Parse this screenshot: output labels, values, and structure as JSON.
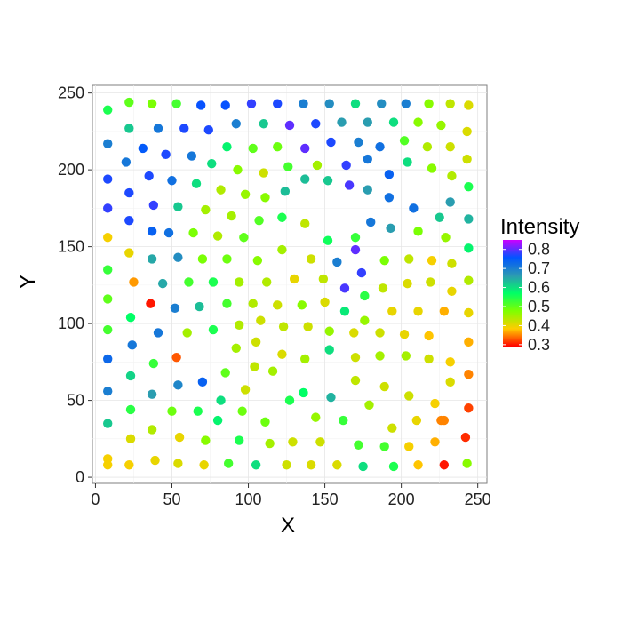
{
  "chart_data": {
    "type": "scatter",
    "title": "",
    "xlabel": "X",
    "ylabel": "Y",
    "xlim": [
      -2,
      256
    ],
    "ylim": [
      -4,
      255
    ],
    "x_ticks": [
      0,
      50,
      100,
      150,
      200,
      250
    ],
    "y_ticks": [
      0,
      50,
      100,
      150,
      200,
      250
    ],
    "grid": true,
    "legend": {
      "title": "Intensity",
      "placement": "right",
      "range": [
        0.29,
        0.85
      ],
      "breaks": [
        0.3,
        0.4,
        0.5,
        0.6,
        0.7,
        0.8
      ],
      "labels": [
        "0.3",
        "0.4",
        "0.5",
        "0.6",
        "0.7",
        "0.8"
      ]
    },
    "color_scale": [
      "#ff0000",
      "#ffcc00",
      "#7fff00",
      "#00ff66",
      "#2c99b3",
      "#0055ff",
      "#cc00ff"
    ],
    "points": [
      {
        "x": 8,
        "y": 239,
        "v": 0.55
      },
      {
        "x": 22,
        "y": 244,
        "v": 0.5
      },
      {
        "x": 37,
        "y": 243,
        "v": 0.48
      },
      {
        "x": 53,
        "y": 243,
        "v": 0.52
      },
      {
        "x": 69,
        "y": 242,
        "v": 0.76
      },
      {
        "x": 85,
        "y": 242,
        "v": 0.76
      },
      {
        "x": 102,
        "y": 243,
        "v": 0.78
      },
      {
        "x": 119,
        "y": 243,
        "v": 0.77
      },
      {
        "x": 136,
        "y": 243,
        "v": 0.7
      },
      {
        "x": 153,
        "y": 243,
        "v": 0.68
      },
      {
        "x": 170,
        "y": 243,
        "v": 0.6
      },
      {
        "x": 187,
        "y": 243,
        "v": 0.68
      },
      {
        "x": 203,
        "y": 243,
        "v": 0.7
      },
      {
        "x": 218,
        "y": 243,
        "v": 0.47
      },
      {
        "x": 232,
        "y": 243,
        "v": 0.43
      },
      {
        "x": 244,
        "y": 242,
        "v": 0.41
      },
      {
        "x": 8,
        "y": 217,
        "v": 0.7
      },
      {
        "x": 22,
        "y": 227,
        "v": 0.62
      },
      {
        "x": 41,
        "y": 227,
        "v": 0.71
      },
      {
        "x": 58,
        "y": 227,
        "v": 0.77
      },
      {
        "x": 74,
        "y": 226,
        "v": 0.77
      },
      {
        "x": 92,
        "y": 230,
        "v": 0.7
      },
      {
        "x": 110,
        "y": 230,
        "v": 0.62
      },
      {
        "x": 127,
        "y": 229,
        "v": 0.8
      },
      {
        "x": 144,
        "y": 230,
        "v": 0.77
      },
      {
        "x": 161,
        "y": 231,
        "v": 0.66
      },
      {
        "x": 178,
        "y": 231,
        "v": 0.66
      },
      {
        "x": 195,
        "y": 231,
        "v": 0.6
      },
      {
        "x": 211,
        "y": 231,
        "v": 0.47
      },
      {
        "x": 226,
        "y": 229,
        "v": 0.46
      },
      {
        "x": 243,
        "y": 225,
        "v": 0.41
      },
      {
        "x": 8,
        "y": 194,
        "v": 0.77
      },
      {
        "x": 20,
        "y": 205,
        "v": 0.71
      },
      {
        "x": 31,
        "y": 214,
        "v": 0.75
      },
      {
        "x": 46,
        "y": 210,
        "v": 0.77
      },
      {
        "x": 63,
        "y": 209,
        "v": 0.71
      },
      {
        "x": 76,
        "y": 204,
        "v": 0.6
      },
      {
        "x": 86,
        "y": 215,
        "v": 0.58
      },
      {
        "x": 103,
        "y": 214,
        "v": 0.5
      },
      {
        "x": 119,
        "y": 215,
        "v": 0.49
      },
      {
        "x": 137,
        "y": 214,
        "v": 0.8
      },
      {
        "x": 154,
        "y": 218,
        "v": 0.77
      },
      {
        "x": 172,
        "y": 218,
        "v": 0.7
      },
      {
        "x": 186,
        "y": 215,
        "v": 0.72
      },
      {
        "x": 202,
        "y": 219,
        "v": 0.51
      },
      {
        "x": 217,
        "y": 215,
        "v": 0.44
      },
      {
        "x": 232,
        "y": 215,
        "v": 0.42
      },
      {
        "x": 243,
        "y": 207,
        "v": 0.42
      },
      {
        "x": 8,
        "y": 175,
        "v": 0.78
      },
      {
        "x": 22,
        "y": 185,
        "v": 0.77
      },
      {
        "x": 35,
        "y": 196,
        "v": 0.77
      },
      {
        "x": 50,
        "y": 193,
        "v": 0.72
      },
      {
        "x": 66,
        "y": 191,
        "v": 0.6
      },
      {
        "x": 82,
        "y": 187,
        "v": 0.44
      },
      {
        "x": 93,
        "y": 200,
        "v": 0.47
      },
      {
        "x": 110,
        "y": 198,
        "v": 0.42
      },
      {
        "x": 126,
        "y": 202,
        "v": 0.52
      },
      {
        "x": 145,
        "y": 203,
        "v": 0.45
      },
      {
        "x": 164,
        "y": 203,
        "v": 0.78
      },
      {
        "x": 178,
        "y": 207,
        "v": 0.71
      },
      {
        "x": 192,
        "y": 197,
        "v": 0.74
      },
      {
        "x": 204,
        "y": 205,
        "v": 0.6
      },
      {
        "x": 220,
        "y": 201,
        "v": 0.47
      },
      {
        "x": 233,
        "y": 196,
        "v": 0.44
      },
      {
        "x": 244,
        "y": 189,
        "v": 0.55
      },
      {
        "x": 8,
        "y": 156,
        "v": 0.39
      },
      {
        "x": 22,
        "y": 167,
        "v": 0.77
      },
      {
        "x": 38,
        "y": 177,
        "v": 0.78
      },
      {
        "x": 54,
        "y": 176,
        "v": 0.62
      },
      {
        "x": 72,
        "y": 174,
        "v": 0.45
      },
      {
        "x": 89,
        "y": 170,
        "v": 0.45
      },
      {
        "x": 98,
        "y": 184,
        "v": 0.46
      },
      {
        "x": 111,
        "y": 182,
        "v": 0.47
      },
      {
        "x": 124,
        "y": 186,
        "v": 0.63
      },
      {
        "x": 137,
        "y": 194,
        "v": 0.63
      },
      {
        "x": 152,
        "y": 193,
        "v": 0.62
      },
      {
        "x": 166,
        "y": 190,
        "v": 0.79
      },
      {
        "x": 178,
        "y": 187,
        "v": 0.66
      },
      {
        "x": 192,
        "y": 182,
        "v": 0.72
      },
      {
        "x": 208,
        "y": 175,
        "v": 0.72
      },
      {
        "x": 225,
        "y": 169,
        "v": 0.62
      },
      {
        "x": 232,
        "y": 179,
        "v": 0.66
      },
      {
        "x": 244,
        "y": 168,
        "v": 0.64
      },
      {
        "x": 8,
        "y": 135,
        "v": 0.53
      },
      {
        "x": 22,
        "y": 146,
        "v": 0.4
      },
      {
        "x": 37,
        "y": 160,
        "v": 0.74
      },
      {
        "x": 48,
        "y": 159,
        "v": 0.72
      },
      {
        "x": 64,
        "y": 159,
        "v": 0.48
      },
      {
        "x": 80,
        "y": 157,
        "v": 0.44
      },
      {
        "x": 97,
        "y": 156,
        "v": 0.5
      },
      {
        "x": 107,
        "y": 167,
        "v": 0.51
      },
      {
        "x": 122,
        "y": 169,
        "v": 0.55
      },
      {
        "x": 137,
        "y": 165,
        "v": 0.43
      },
      {
        "x": 152,
        "y": 154,
        "v": 0.56
      },
      {
        "x": 170,
        "y": 156,
        "v": 0.53
      },
      {
        "x": 180,
        "y": 166,
        "v": 0.71
      },
      {
        "x": 193,
        "y": 162,
        "v": 0.66
      },
      {
        "x": 211,
        "y": 160,
        "v": 0.48
      },
      {
        "x": 229,
        "y": 156,
        "v": 0.46
      },
      {
        "x": 244,
        "y": 149,
        "v": 0.58
      },
      {
        "x": 8,
        "y": 116,
        "v": 0.5
      },
      {
        "x": 25,
        "y": 127,
        "v": 0.36
      },
      {
        "x": 37,
        "y": 142,
        "v": 0.65
      },
      {
        "x": 54,
        "y": 143,
        "v": 0.68
      },
      {
        "x": 70,
        "y": 142,
        "v": 0.48
      },
      {
        "x": 86,
        "y": 142,
        "v": 0.49
      },
      {
        "x": 106,
        "y": 141,
        "v": 0.47
      },
      {
        "x": 122,
        "y": 148,
        "v": 0.45
      },
      {
        "x": 141,
        "y": 142,
        "v": 0.42
      },
      {
        "x": 158,
        "y": 140,
        "v": 0.7
      },
      {
        "x": 170,
        "y": 148,
        "v": 0.8
      },
      {
        "x": 174,
        "y": 133,
        "v": 0.78
      },
      {
        "x": 189,
        "y": 141,
        "v": 0.48
      },
      {
        "x": 205,
        "y": 142,
        "v": 0.43
      },
      {
        "x": 220,
        "y": 141,
        "v": 0.39
      },
      {
        "x": 233,
        "y": 139,
        "v": 0.42
      },
      {
        "x": 244,
        "y": 128,
        "v": 0.44
      },
      {
        "x": 8,
        "y": 96,
        "v": 0.52
      },
      {
        "x": 23,
        "y": 104,
        "v": 0.57
      },
      {
        "x": 36,
        "y": 113,
        "v": 0.3
      },
      {
        "x": 44,
        "y": 126,
        "v": 0.65
      },
      {
        "x": 61,
        "y": 127,
        "v": 0.52
      },
      {
        "x": 77,
        "y": 127,
        "v": 0.55
      },
      {
        "x": 94,
        "y": 127,
        "v": 0.45
      },
      {
        "x": 112,
        "y": 127,
        "v": 0.44
      },
      {
        "x": 130,
        "y": 129,
        "v": 0.4
      },
      {
        "x": 149,
        "y": 129,
        "v": 0.43
      },
      {
        "x": 163,
        "y": 123,
        "v": 0.79
      },
      {
        "x": 176,
        "y": 118,
        "v": 0.54
      },
      {
        "x": 188,
        "y": 123,
        "v": 0.43
      },
      {
        "x": 204,
        "y": 126,
        "v": 0.41
      },
      {
        "x": 219,
        "y": 127,
        "v": 0.42
      },
      {
        "x": 233,
        "y": 121,
        "v": 0.4
      },
      {
        "x": 244,
        "y": 107,
        "v": 0.4
      },
      {
        "x": 8,
        "y": 77,
        "v": 0.73
      },
      {
        "x": 24,
        "y": 86,
        "v": 0.71
      },
      {
        "x": 41,
        "y": 94,
        "v": 0.71
      },
      {
        "x": 52,
        "y": 110,
        "v": 0.7
      },
      {
        "x": 68,
        "y": 111,
        "v": 0.63
      },
      {
        "x": 86,
        "y": 113,
        "v": 0.52
      },
      {
        "x": 103,
        "y": 113,
        "v": 0.44
      },
      {
        "x": 119,
        "y": 112,
        "v": 0.42
      },
      {
        "x": 135,
        "y": 112,
        "v": 0.47
      },
      {
        "x": 150,
        "y": 114,
        "v": 0.41
      },
      {
        "x": 163,
        "y": 108,
        "v": 0.59
      },
      {
        "x": 176,
        "y": 102,
        "v": 0.46
      },
      {
        "x": 194,
        "y": 108,
        "v": 0.4
      },
      {
        "x": 211,
        "y": 108,
        "v": 0.4
      },
      {
        "x": 228,
        "y": 108,
        "v": 0.37
      },
      {
        "x": 244,
        "y": 88,
        "v": 0.37
      },
      {
        "x": 8,
        "y": 56,
        "v": 0.7
      },
      {
        "x": 23,
        "y": 66,
        "v": 0.61
      },
      {
        "x": 38,
        "y": 74,
        "v": 0.53
      },
      {
        "x": 53,
        "y": 78,
        "v": 0.33
      },
      {
        "x": 60,
        "y": 94,
        "v": 0.45
      },
      {
        "x": 77,
        "y": 96,
        "v": 0.55
      },
      {
        "x": 94,
        "y": 99,
        "v": 0.44
      },
      {
        "x": 108,
        "y": 102,
        "v": 0.42
      },
      {
        "x": 123,
        "y": 98,
        "v": 0.43
      },
      {
        "x": 139,
        "y": 98,
        "v": 0.42
      },
      {
        "x": 153,
        "y": 95,
        "v": 0.46
      },
      {
        "x": 169,
        "y": 94,
        "v": 0.41
      },
      {
        "x": 186,
        "y": 94,
        "v": 0.42
      },
      {
        "x": 202,
        "y": 93,
        "v": 0.4
      },
      {
        "x": 218,
        "y": 92,
        "v": 0.38
      },
      {
        "x": 232,
        "y": 75,
        "v": 0.39
      },
      {
        "x": 244,
        "y": 67,
        "v": 0.35
      },
      {
        "x": 8,
        "y": 35,
        "v": 0.62
      },
      {
        "x": 23,
        "y": 44,
        "v": 0.54
      },
      {
        "x": 37,
        "y": 54,
        "v": 0.66
      },
      {
        "x": 54,
        "y": 60,
        "v": 0.69
      },
      {
        "x": 70,
        "y": 62,
        "v": 0.74
      },
      {
        "x": 85,
        "y": 68,
        "v": 0.5
      },
      {
        "x": 92,
        "y": 84,
        "v": 0.45
      },
      {
        "x": 105,
        "y": 88,
        "v": 0.42
      },
      {
        "x": 122,
        "y": 80,
        "v": 0.41
      },
      {
        "x": 137,
        "y": 77,
        "v": 0.45
      },
      {
        "x": 153,
        "y": 83,
        "v": 0.6
      },
      {
        "x": 170,
        "y": 78,
        "v": 0.42
      },
      {
        "x": 186,
        "y": 79,
        "v": 0.45
      },
      {
        "x": 203,
        "y": 79,
        "v": 0.45
      },
      {
        "x": 218,
        "y": 77,
        "v": 0.42
      },
      {
        "x": 232,
        "y": 62,
        "v": 0.41
      },
      {
        "x": 244,
        "y": 45,
        "v": 0.32
      },
      {
        "x": 8,
        "y": 12,
        "v": 0.39
      },
      {
        "x": 23,
        "y": 25,
        "v": 0.41
      },
      {
        "x": 37,
        "y": 31,
        "v": 0.44
      },
      {
        "x": 50,
        "y": 43,
        "v": 0.49
      },
      {
        "x": 67,
        "y": 43,
        "v": 0.55
      },
      {
        "x": 82,
        "y": 50,
        "v": 0.6
      },
      {
        "x": 98,
        "y": 57,
        "v": 0.42
      },
      {
        "x": 104,
        "y": 72,
        "v": 0.43
      },
      {
        "x": 116,
        "y": 69,
        "v": 0.45
      },
      {
        "x": 136,
        "y": 55,
        "v": 0.57
      },
      {
        "x": 154,
        "y": 52,
        "v": 0.64
      },
      {
        "x": 170,
        "y": 63,
        "v": 0.43
      },
      {
        "x": 189,
        "y": 59,
        "v": 0.42
      },
      {
        "x": 205,
        "y": 53,
        "v": 0.42
      },
      {
        "x": 222,
        "y": 48,
        "v": 0.39
      },
      {
        "x": 226,
        "y": 37,
        "v": 0.35
      },
      {
        "x": 242,
        "y": 26,
        "v": 0.31
      },
      {
        "x": 8,
        "y": 8,
        "v": 0.39
      },
      {
        "x": 22,
        "y": 8,
        "v": 0.39
      },
      {
        "x": 39,
        "y": 11,
        "v": 0.4
      },
      {
        "x": 55,
        "y": 26,
        "v": 0.4
      },
      {
        "x": 72,
        "y": 24,
        "v": 0.47
      },
      {
        "x": 80,
        "y": 37,
        "v": 0.58
      },
      {
        "x": 96,
        "y": 43,
        "v": 0.49
      },
      {
        "x": 111,
        "y": 36,
        "v": 0.49
      },
      {
        "x": 127,
        "y": 50,
        "v": 0.55
      },
      {
        "x": 144,
        "y": 39,
        "v": 0.46
      },
      {
        "x": 162,
        "y": 37,
        "v": 0.53
      },
      {
        "x": 179,
        "y": 47,
        "v": 0.45
      },
      {
        "x": 194,
        "y": 32,
        "v": 0.42
      },
      {
        "x": 210,
        "y": 37,
        "v": 0.4
      },
      {
        "x": 228,
        "y": 37,
        "v": 0.35
      },
      {
        "x": 54,
        "y": 9,
        "v": 0.41
      },
      {
        "x": 71,
        "y": 8,
        "v": 0.4
      },
      {
        "x": 87,
        "y": 9,
        "v": 0.52
      },
      {
        "x": 105,
        "y": 8,
        "v": 0.6
      },
      {
        "x": 114,
        "y": 22,
        "v": 0.45
      },
      {
        "x": 125,
        "y": 8,
        "v": 0.42
      },
      {
        "x": 141,
        "y": 8,
        "v": 0.41
      },
      {
        "x": 158,
        "y": 8,
        "v": 0.41
      },
      {
        "x": 175,
        "y": 7,
        "v": 0.6
      },
      {
        "x": 195,
        "y": 7,
        "v": 0.55
      },
      {
        "x": 211,
        "y": 8,
        "v": 0.38
      },
      {
        "x": 228,
        "y": 8,
        "v": 0.3
      },
      {
        "x": 243,
        "y": 9,
        "v": 0.47
      },
      {
        "x": 94,
        "y": 24,
        "v": 0.55
      },
      {
        "x": 129,
        "y": 23,
        "v": 0.42
      },
      {
        "x": 147,
        "y": 23,
        "v": 0.42
      },
      {
        "x": 172,
        "y": 21,
        "v": 0.52
      },
      {
        "x": 189,
        "y": 20,
        "v": 0.52
      },
      {
        "x": 205,
        "y": 20,
        "v": 0.39
      },
      {
        "x": 222,
        "y": 23,
        "v": 0.37
      }
    ]
  }
}
